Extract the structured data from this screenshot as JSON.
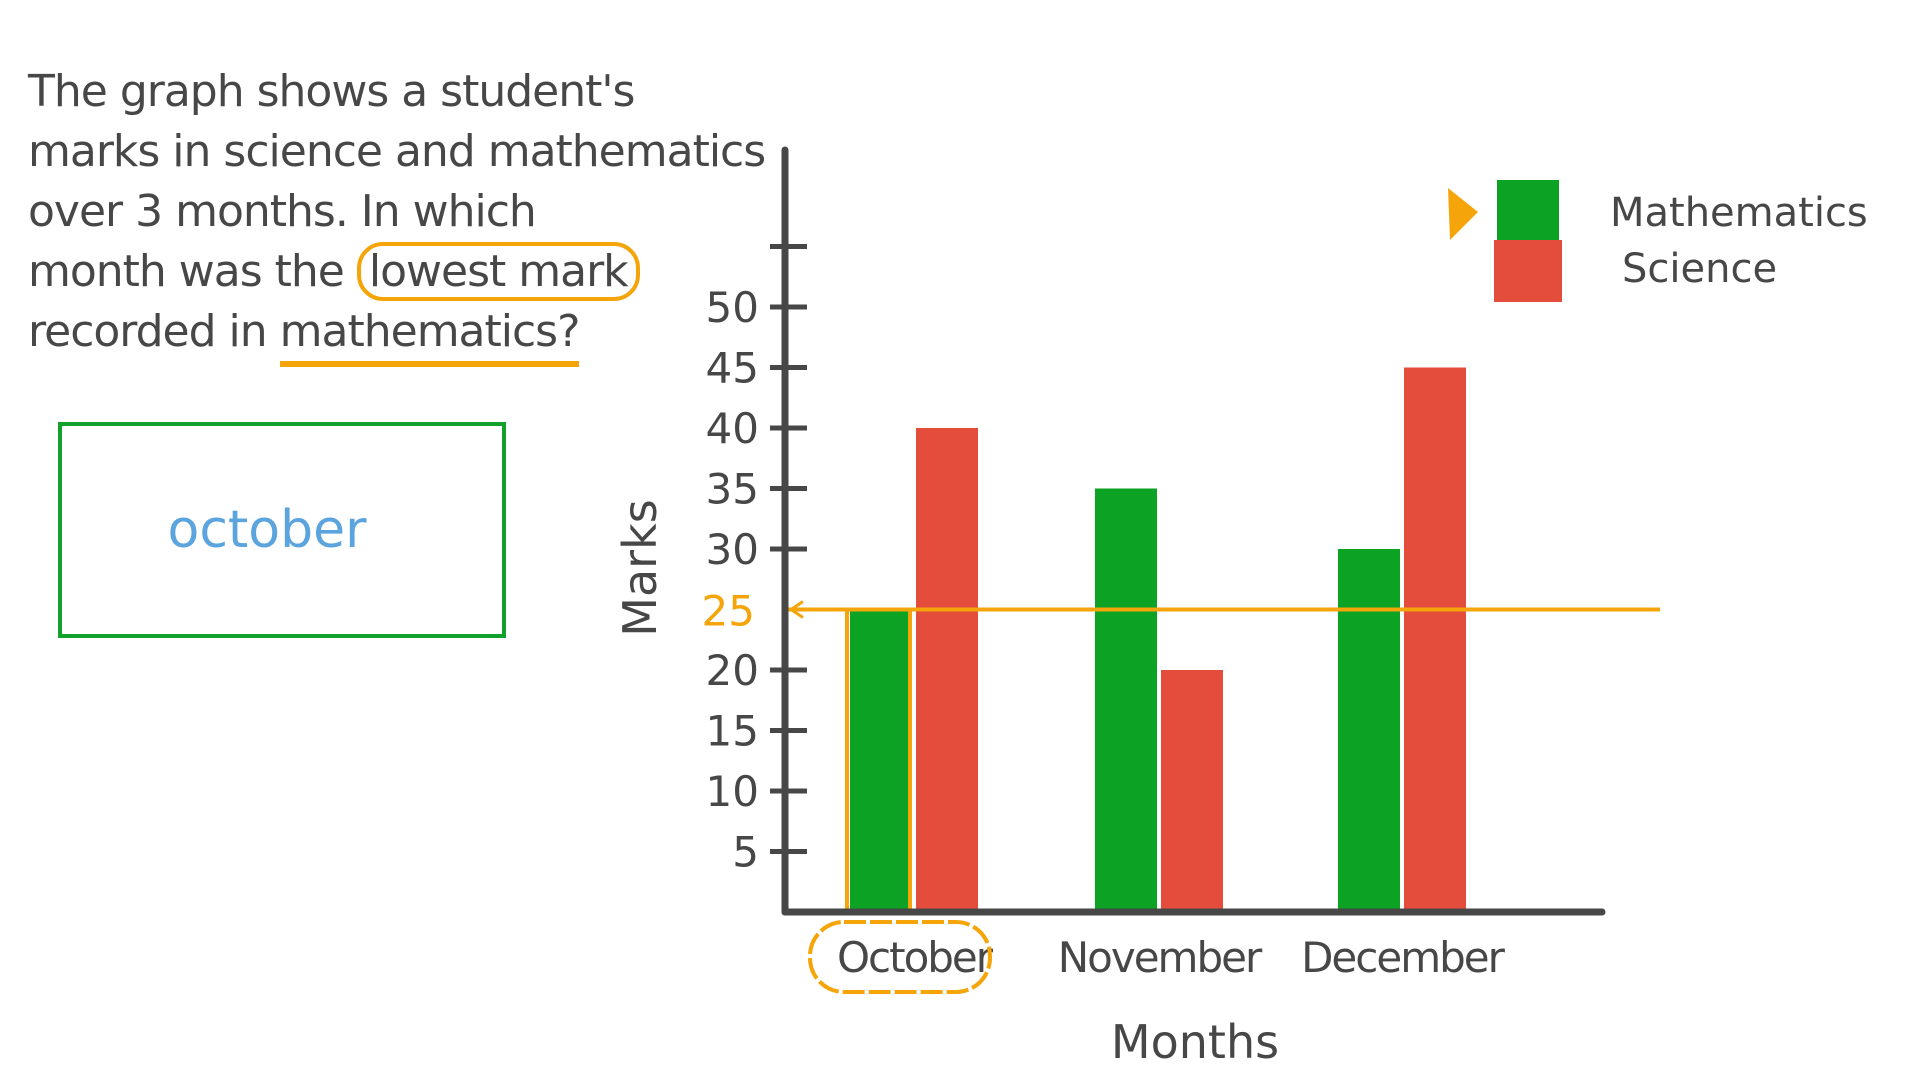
{
  "question": {
    "lines": [
      "The graph shows a student's",
      "marks in science and mathematics",
      "over 3 months. In which",
      "month was the",
      "recorded in"
    ],
    "highlight_cloud": "lowest mark",
    "highlight_underline": "mathematics?"
  },
  "answer": {
    "text": "october"
  },
  "colors": {
    "mathematics": "#0CA224",
    "science": "#E44C3C",
    "highlight": "#F5A50A",
    "answer_text": "#5BA4DE",
    "answer_border": "#12A22B",
    "ink": "#474747"
  },
  "legend": {
    "items": [
      {
        "label": "Mathematics",
        "color": "#0CA224"
      },
      {
        "label": "Science",
        "color": "#E44C3C"
      }
    ]
  },
  "chart_data": {
    "type": "bar",
    "title": "",
    "categories": [
      "October",
      "November",
      "December"
    ],
    "series": [
      {
        "name": "Mathematics",
        "values": [
          25,
          35,
          30
        ]
      },
      {
        "name": "Science",
        "values": [
          40,
          20,
          45
        ]
      }
    ],
    "xlabel": "Months",
    "ylabel": "Marks",
    "yticks": [
      5,
      10,
      15,
      20,
      25,
      30,
      35,
      40,
      45,
      50
    ],
    "ylim": [
      0,
      55
    ],
    "grid": false,
    "legend_position": "top-right",
    "annotations": [
      {
        "type": "reference_line",
        "value": 25,
        "label": "25",
        "color": "#F5A50A"
      },
      {
        "type": "highlight",
        "target": "October",
        "style": "cloud"
      }
    ]
  }
}
